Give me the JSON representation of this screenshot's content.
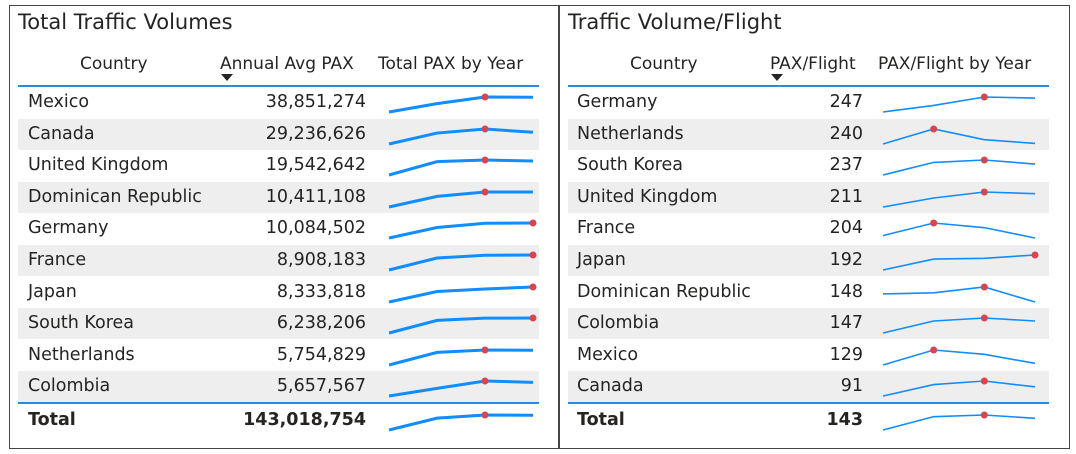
{
  "left": {
    "title": "Total Traffic Volumes",
    "headers": {
      "country": "Country",
      "value": "Annual Avg PAX",
      "spark": "Total PAX by Year"
    },
    "rows": [
      {
        "country": "Mexico",
        "value": "38,851,274",
        "spark": [
          0,
          0.56,
          1,
          0.98
        ]
      },
      {
        "country": "Canada",
        "value": "29,236,626",
        "spark": [
          0,
          0.73,
          1,
          0.78
        ]
      },
      {
        "country": "United Kingdom",
        "value": "19,542,642",
        "spark": [
          0,
          0.89,
          1,
          0.93
        ]
      },
      {
        "country": "Dominican Republic",
        "value": "10,411,108",
        "spark": [
          0,
          0.71,
          1,
          1.0
        ]
      },
      {
        "country": "Germany",
        "value": "10,084,502",
        "spark": [
          0,
          0.7,
          0.98,
          1
        ]
      },
      {
        "country": "France",
        "value": "8,908,183",
        "spark": [
          0,
          0.8,
          0.98,
          1
        ]
      },
      {
        "country": "Japan",
        "value": "8,333,818",
        "spark": [
          0,
          0.7,
          0.87,
          1
        ]
      },
      {
        "country": "South Korea",
        "value": "6,238,206",
        "spark": [
          0,
          0.84,
          0.99,
          1
        ]
      },
      {
        "country": "Netherlands",
        "value": "5,754,829",
        "spark": [
          0,
          0.84,
          1,
          0.98
        ]
      },
      {
        "country": "Colombia",
        "value": "5,657,567",
        "spark": [
          0,
          0.51,
          1,
          0.91
        ]
      }
    ],
    "total": {
      "country": "Total",
      "value": "143,018,754",
      "spark": [
        0,
        0.79,
        1,
        0.98
      ]
    }
  },
  "right": {
    "title": "Traffic Volume/Flight",
    "headers": {
      "country": "Country",
      "value": "PAX/Flight",
      "spark": "PAX/Flight by Year"
    },
    "rows": [
      {
        "country": "Germany",
        "value": "247",
        "spark": [
          0,
          0.44,
          1,
          0.93
        ]
      },
      {
        "country": "Netherlands",
        "value": "240",
        "spark": [
          0,
          1,
          0.29,
          0.04
        ]
      },
      {
        "country": "South Korea",
        "value": "237",
        "spark": [
          0,
          0.84,
          1,
          0.73
        ]
      },
      {
        "country": "United Kingdom",
        "value": "211",
        "spark": [
          0,
          0.6,
          1,
          0.89
        ]
      },
      {
        "country": "France",
        "value": "204",
        "spark": [
          0.16,
          1,
          0.69,
          0
        ]
      },
      {
        "country": "Japan",
        "value": "192",
        "spark": [
          0,
          0.73,
          0.78,
          1
        ]
      },
      {
        "country": "Dominican Republic",
        "value": "148",
        "spark": [
          0.54,
          0.61,
          1,
          0
        ]
      },
      {
        "country": "Colombia",
        "value": "147",
        "spark": [
          0,
          0.8,
          1,
          0.8
        ]
      },
      {
        "country": "Mexico",
        "value": "129",
        "spark": [
          0,
          1,
          0.71,
          0.11
        ]
      },
      {
        "country": "Canada",
        "value": "91",
        "spark": [
          0,
          0.76,
          1,
          0.61
        ]
      }
    ],
    "total": {
      "country": "Total",
      "value": "143",
      "spark": [
        0,
        0.89,
        1,
        0.78
      ]
    }
  },
  "colors": {
    "line": "#118dff",
    "marker": "#d64550",
    "accent": "#2a8ae0",
    "band": "#eeeeee"
  }
}
